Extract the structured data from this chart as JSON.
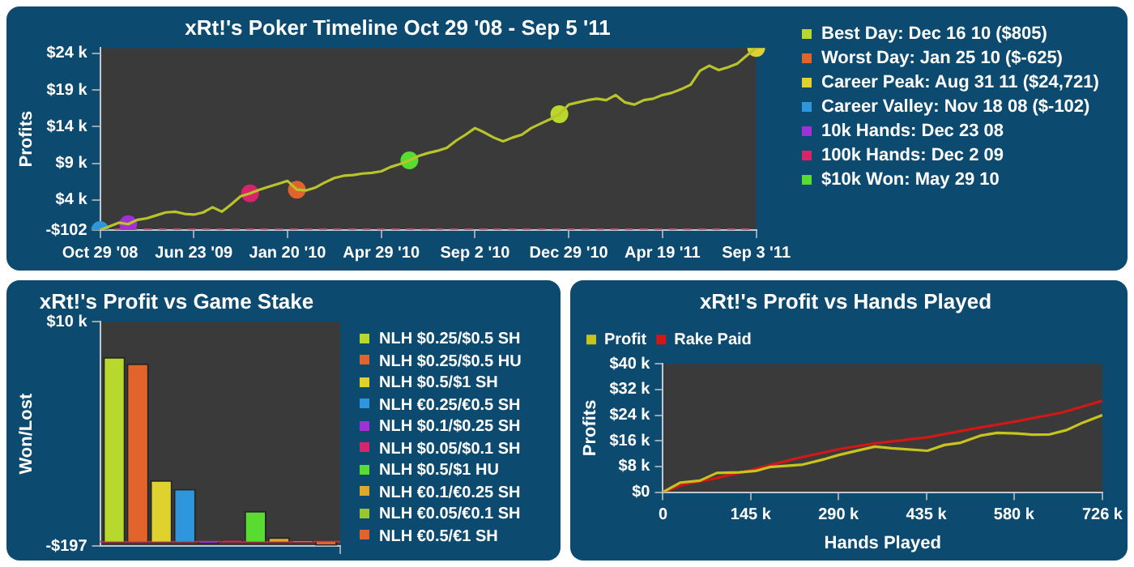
{
  "chart_data": [
    {
      "type": "line",
      "title": "xRt!'s Poker Timeline Oct 29 '08 - Sep 5 '11",
      "ylabel": "Profits",
      "grid": false,
      "legend": "right",
      "marker": "none",
      "categories": [
        "Oct 29 '08",
        null,
        null,
        null,
        null,
        null,
        null,
        null,
        null,
        null,
        "Jun 23 '09",
        null,
        null,
        null,
        null,
        null,
        null,
        null,
        null,
        null,
        "Jan 20 '10",
        null,
        null,
        null,
        null,
        null,
        null,
        null,
        null,
        null,
        "Apr 29 '10",
        null,
        null,
        null,
        null,
        null,
        null,
        null,
        null,
        null,
        "Sep 2 '10",
        null,
        null,
        null,
        null,
        null,
        null,
        null,
        null,
        null,
        "Dec 29 '10",
        null,
        null,
        null,
        null,
        null,
        null,
        null,
        null,
        null,
        "Apr 19 '11",
        null,
        null,
        null,
        null,
        null,
        null,
        null,
        null,
        null,
        "Sep 3 '11"
      ],
      "ylim": [
        -102,
        24721
      ],
      "yticks": [
        {
          "value": -102,
          "label": "-$102"
        },
        {
          "value": 4000,
          "label": "$4 k"
        },
        {
          "value": 9000,
          "label": "$9 k"
        },
        {
          "value": 14000,
          "label": "$14 k"
        },
        {
          "value": 19000,
          "label": "$19 k"
        },
        {
          "value": 24000,
          "label": "$24 k"
        }
      ],
      "ref_lines": [
        {
          "axis": "y",
          "value": 0,
          "color": "#c8506e",
          "line_style": "dashed"
        }
      ],
      "series": [
        {
          "color": "#b8c42a",
          "values": [
            -102,
            400,
            900,
            700,
            1300,
            1500,
            1900,
            2300,
            2400,
            2100,
            2000,
            2300,
            3000,
            2400,
            3400,
            4500,
            4900,
            5400,
            5800,
            6200,
            6600,
            5400,
            5300,
            5700,
            6400,
            7000,
            7300,
            7400,
            7600,
            7700,
            7900,
            8500,
            8900,
            9400,
            10000,
            10400,
            10700,
            11100,
            12100,
            12900,
            13800,
            13200,
            12500,
            12000,
            12500,
            12900,
            13800,
            14400,
            15000,
            15700,
            17000,
            17300,
            17600,
            17800,
            17600,
            18300,
            17300,
            17000,
            17600,
            17800,
            18300,
            18600,
            19100,
            19700,
            21600,
            22300,
            21700,
            22100,
            22600,
            23700,
            24721
          ]
        },
        {
          "type": "scatter",
          "marker": "circle",
          "name": "Best Day: Dec 16 10 ($805)",
          "color": "#b8d82e",
          "values": [
            null,
            null,
            null,
            null,
            null,
            null,
            null,
            null,
            null,
            null,
            null,
            null,
            null,
            null,
            null,
            null,
            null,
            null,
            null,
            null,
            null,
            null,
            null,
            null,
            null,
            null,
            null,
            null,
            null,
            null,
            null,
            null,
            null,
            null,
            null,
            null,
            null,
            null,
            null,
            null,
            null,
            null,
            null,
            null,
            null,
            null,
            null,
            null,
            null,
            15700,
            null,
            null,
            null,
            null,
            null,
            null,
            null,
            null,
            null,
            null,
            null,
            null,
            null,
            null,
            null,
            null,
            null,
            null,
            null,
            null,
            null
          ]
        },
        {
          "type": "scatter",
          "marker": "circle",
          "name": "Worst Day: Jan 25 10 ($-625)",
          "color": "#e2642c",
          "values": [
            null,
            null,
            null,
            null,
            null,
            null,
            null,
            null,
            null,
            null,
            null,
            null,
            null,
            null,
            null,
            null,
            null,
            null,
            null,
            null,
            null,
            5400,
            null,
            null,
            null,
            null,
            null,
            null,
            null,
            null,
            null,
            null,
            null,
            null,
            null,
            null,
            null,
            null,
            null,
            null,
            null,
            null,
            null,
            null,
            null,
            null,
            null,
            null,
            null,
            null,
            null,
            null,
            null,
            null,
            null,
            null,
            null,
            null,
            null,
            null,
            null,
            null,
            null,
            null,
            null,
            null,
            null,
            null,
            null,
            null,
            null
          ]
        },
        {
          "type": "scatter",
          "marker": "circle",
          "name": "Career Peak: Aug 31 11 ($24,721)",
          "color": "#e0d22e",
          "values": [
            null,
            null,
            null,
            null,
            null,
            null,
            null,
            null,
            null,
            null,
            null,
            null,
            null,
            null,
            null,
            null,
            null,
            null,
            null,
            null,
            null,
            null,
            null,
            null,
            null,
            null,
            null,
            null,
            null,
            null,
            null,
            null,
            null,
            null,
            null,
            null,
            null,
            null,
            null,
            null,
            null,
            null,
            null,
            null,
            null,
            null,
            null,
            null,
            null,
            null,
            null,
            null,
            null,
            null,
            null,
            null,
            null,
            null,
            null,
            null,
            null,
            null,
            null,
            null,
            null,
            null,
            null,
            null,
            null,
            null,
            24721
          ]
        },
        {
          "type": "scatter",
          "marker": "circle",
          "name": "Career Valley: Nov 18 08 ($-102)",
          "color": "#2e96dc",
          "values": [
            -102,
            null,
            null,
            null,
            null,
            null,
            null,
            null,
            null,
            null,
            null,
            null,
            null,
            null,
            null,
            null,
            null,
            null,
            null,
            null,
            null,
            null,
            null,
            null,
            null,
            null,
            null,
            null,
            null,
            null,
            null,
            null,
            null,
            null,
            null,
            null,
            null,
            null,
            null,
            null,
            null,
            null,
            null,
            null,
            null,
            null,
            null,
            null,
            null,
            null,
            null,
            null,
            null,
            null,
            null,
            null,
            null,
            null,
            null,
            null,
            null,
            null,
            null,
            null,
            null,
            null,
            null,
            null,
            null,
            null,
            null
          ]
        },
        {
          "type": "scatter",
          "marker": "circle",
          "name": "10k Hands: Dec 23 08",
          "color": "#a030d8",
          "values": [
            null,
            null,
            null,
            700,
            null,
            null,
            null,
            null,
            null,
            null,
            null,
            null,
            null,
            null,
            null,
            null,
            null,
            null,
            null,
            null,
            null,
            null,
            null,
            null,
            null,
            null,
            null,
            null,
            null,
            null,
            null,
            null,
            null,
            null,
            null,
            null,
            null,
            null,
            null,
            null,
            null,
            null,
            null,
            null,
            null,
            null,
            null,
            null,
            null,
            null,
            null,
            null,
            null,
            null,
            null,
            null,
            null,
            null,
            null,
            null,
            null,
            null,
            null,
            null,
            null,
            null,
            null,
            null,
            null,
            null,
            null
          ]
        },
        {
          "type": "scatter",
          "marker": "circle",
          "name": "100k Hands: Dec 2 09",
          "color": "#d8246a",
          "values": [
            null,
            null,
            null,
            null,
            null,
            null,
            null,
            null,
            null,
            null,
            null,
            null,
            null,
            null,
            null,
            null,
            4900,
            null,
            null,
            null,
            null,
            null,
            null,
            null,
            null,
            null,
            null,
            null,
            null,
            null,
            null,
            null,
            null,
            null,
            null,
            null,
            null,
            null,
            null,
            null,
            null,
            null,
            null,
            null,
            null,
            null,
            null,
            null,
            null,
            null,
            null,
            null,
            null,
            null,
            null,
            null,
            null,
            null,
            null,
            null,
            null,
            null,
            null,
            null,
            null,
            null,
            null,
            null,
            null,
            null,
            null
          ]
        },
        {
          "type": "scatter",
          "marker": "circle",
          "name": "$10k Won: May 29 10",
          "color": "#58dc30",
          "values": [
            null,
            null,
            null,
            null,
            null,
            null,
            null,
            null,
            null,
            null,
            null,
            null,
            null,
            null,
            null,
            null,
            null,
            null,
            null,
            null,
            null,
            null,
            null,
            null,
            null,
            null,
            null,
            null,
            null,
            null,
            null,
            null,
            null,
            9400,
            null,
            null,
            null,
            null,
            null,
            null,
            null,
            null,
            null,
            null,
            null,
            null,
            null,
            null,
            null,
            null,
            null,
            null,
            null,
            null,
            null,
            null,
            null,
            null,
            null,
            null,
            null,
            null,
            null,
            null,
            null,
            null,
            null,
            null,
            null,
            null,
            null
          ]
        }
      ]
    },
    {
      "type": "bar",
      "title": "xRt!'s Profit vs Game Stake",
      "ylabel": "Won/Lost",
      "grid": false,
      "legend": "right",
      "tick_labels": "y",
      "categories": [
        null
      ],
      "series": [
        {
          "name": "NLH $0.25/$0.5 SH",
          "color": "#b8d82e",
          "values": [
            8400
          ]
        },
        {
          "name": "NLH $0.25/$0.5 HU",
          "color": "#e2642c",
          "values": [
            8100
          ]
        },
        {
          "name": "NLH $0.5/$1 SH",
          "color": "#e0d22e",
          "values": [
            2800
          ]
        },
        {
          "name": "NLH €0.25/€0.5 SH",
          "color": "#2e96dc",
          "values": [
            2400
          ]
        },
        {
          "name": "NLH $0.1/$0.25 SH",
          "color": "#a030d8",
          "values": [
            -100
          ]
        },
        {
          "name": "NLH $0.05/$0.1 SH",
          "color": "#d8246a",
          "values": [
            80
          ]
        },
        {
          "name": "NLH $0.5/$1 HU",
          "color": "#58dc30",
          "values": [
            1400
          ]
        },
        {
          "name": "NLH €0.1/€0.25 SH",
          "color": "#e0a82a",
          "values": [
            200
          ]
        },
        {
          "name": "NLH €0.05/€0.1 SH",
          "color": "#98c82e",
          "values": [
            50
          ]
        },
        {
          "name": "NLH €0.5/€1 SH",
          "color": "#e2642c",
          "values": [
            -197
          ]
        }
      ],
      "ylim": [
        -197,
        10000
      ],
      "yticks": [
        {
          "value": -197,
          "label": "-$197"
        },
        {
          "value": 10000,
          "label": "$10 k"
        }
      ],
      "ref_lines": [
        {
          "axis": "y",
          "value": 0,
          "color": "#c8304a",
          "line_style": "solid"
        }
      ]
    },
    {
      "type": "line",
      "title": "xRt!'s Profit vs Hands Played",
      "xlabel": "Hands Played",
      "ylabel": "Profits",
      "grid": false,
      "legend": "top",
      "marker": "none",
      "xlim": [
        0,
        726000
      ],
      "xticks": [
        0,
        {
          "value": 145000,
          "label": "145 k"
        },
        {
          "value": 290000,
          "label": "290 k"
        },
        {
          "value": 435000,
          "label": "435 k"
        },
        {
          "value": 580000,
          "label": "580 k"
        },
        {
          "value": 726000,
          "label": "726 k"
        }
      ],
      "ylim": [
        0,
        40000
      ],
      "yticks": [
        {
          "value": 0,
          "label": "$0"
        },
        {
          "value": 8000,
          "label": "$8 k"
        },
        {
          "value": 16000,
          "label": "$16 k"
        },
        {
          "value": 24000,
          "label": "$24 k"
        },
        {
          "value": 32000,
          "label": "$32 k"
        },
        {
          "value": 40000,
          "label": "$40 k"
        }
      ],
      "series": [
        {
          "name": "Profit",
          "color": "#c8c41e",
          "x": [
            0,
            29000,
            61000,
            89000,
            126000,
            153000,
            176000,
            231000,
            263000,
            291000,
            318000,
            350000,
            378000,
            437000,
            465000,
            492000,
            524000,
            552000,
            584000,
            611000,
            639000,
            666000,
            694000,
            726000
          ],
          "values": [
            0,
            3000,
            3600,
            6000,
            6200,
            6600,
            7800,
            8600,
            10100,
            11600,
            12800,
            14200,
            13700,
            12900,
            14700,
            15400,
            17600,
            18500,
            18300,
            17900,
            18000,
            19300,
            21700,
            24000
          ]
        },
        {
          "name": "Rake Paid",
          "color": "#d01818",
          "x": [
            0,
            34000,
            89000,
            144000,
            218000,
            291000,
            350000,
            437000,
            510000,
            584000,
            657000,
            726000
          ],
          "values": [
            0,
            2400,
            4400,
            6800,
            10400,
            13400,
            15200,
            17100,
            19700,
            22100,
            24700,
            28500
          ]
        }
      ]
    }
  ]
}
